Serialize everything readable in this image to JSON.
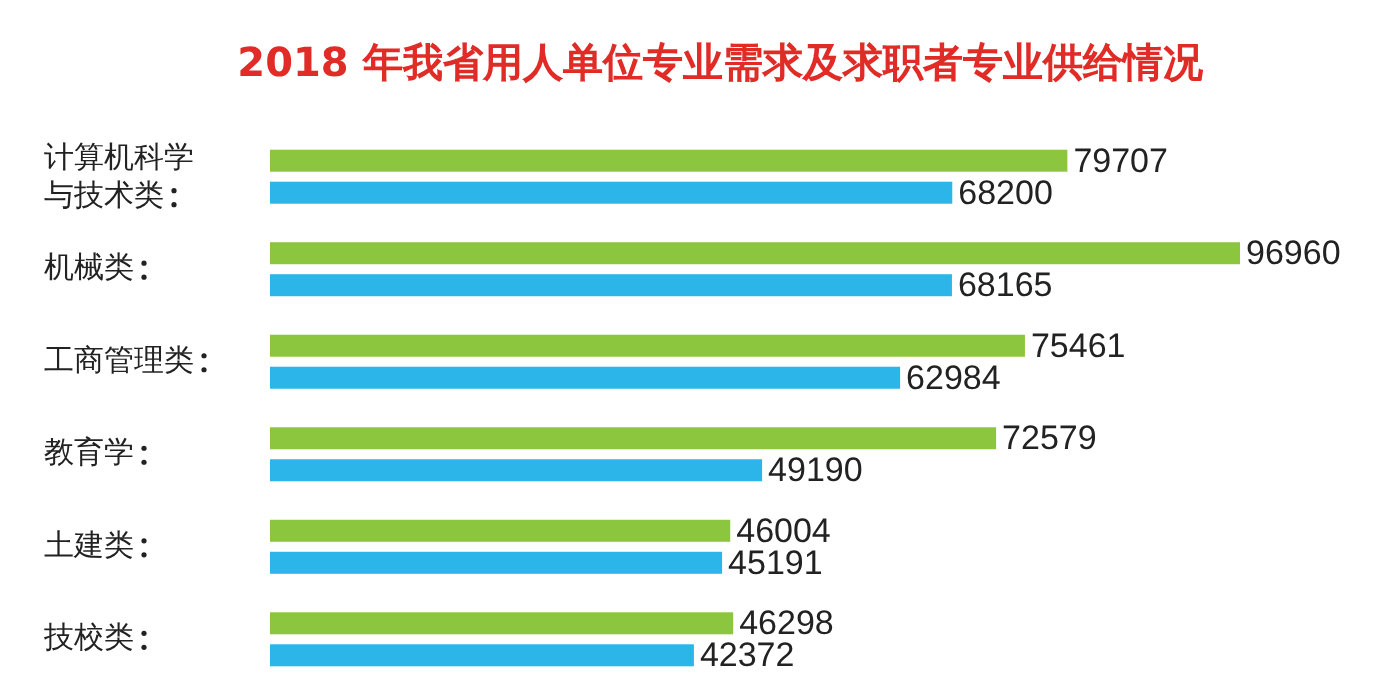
{
  "chart_data": {
    "type": "bar",
    "orientation": "horizontal",
    "title": "2018 年我省用人单位专业需求及求职者专业供给情况",
    "categories": [
      "计算机科学与技术类",
      "机械类",
      "工商管理类",
      "教育学",
      "土建类",
      "技校类"
    ],
    "series": [
      {
        "color": "#8cc63e",
        "values": [
          79707,
          96960,
          75461,
          72579,
          46004,
          46298
        ]
      },
      {
        "color": "#2bb5e8",
        "values": [
          68200,
          68165,
          62984,
          49190,
          45191,
          42372
        ]
      }
    ],
    "data_labels": true,
    "tick_labels": "y",
    "grid": false
  }
}
